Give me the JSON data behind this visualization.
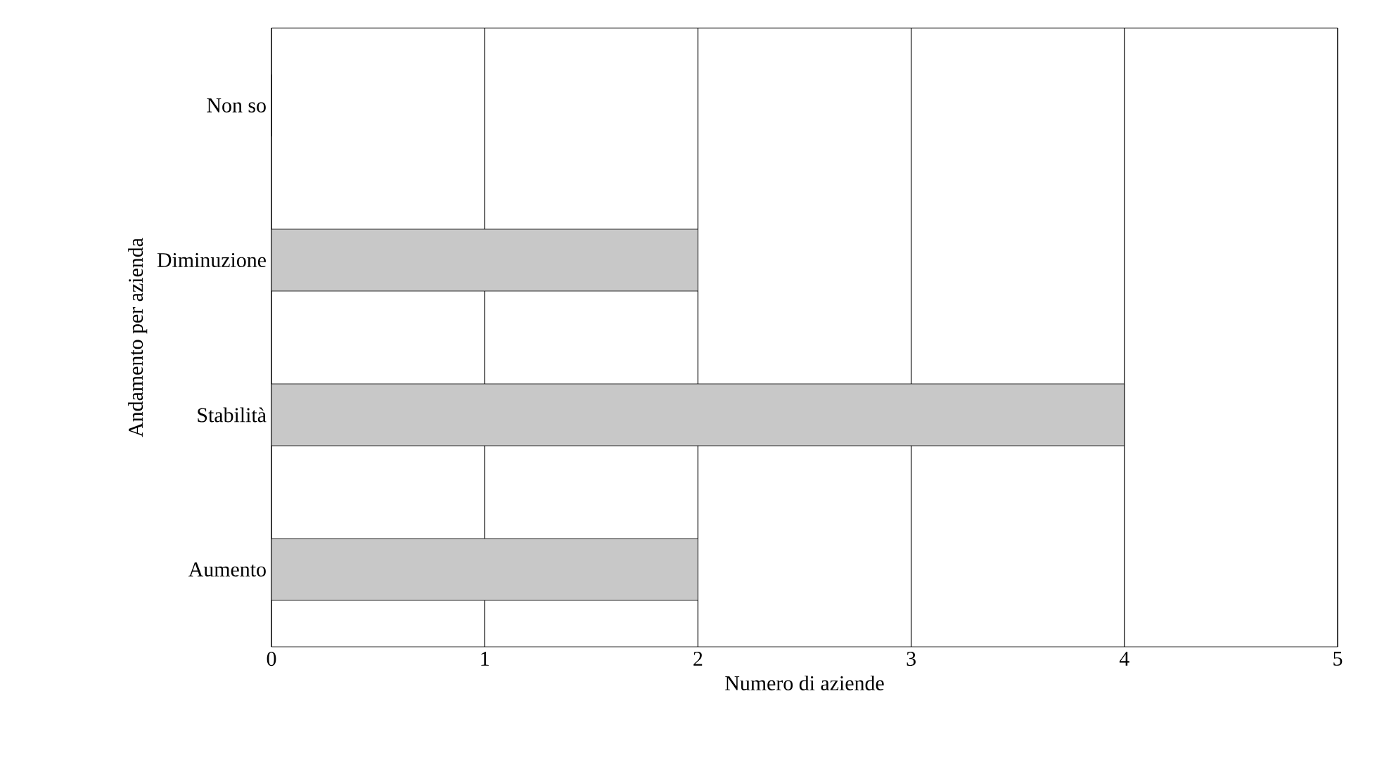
{
  "chart_data": {
    "type": "bar",
    "orientation": "horizontal",
    "categories": [
      "Non so",
      "Diminuzione",
      "Stabilità",
      "Aumento"
    ],
    "values": [
      0,
      2,
      4,
      2
    ],
    "color": "#c8c8c8",
    "xlim": [
      0,
      5
    ],
    "xticks": [
      0,
      1,
      2,
      3,
      4,
      5
    ],
    "grid": "x",
    "xlabel": "Numero di aziende",
    "ylabel": "Andamento per azienda"
  }
}
